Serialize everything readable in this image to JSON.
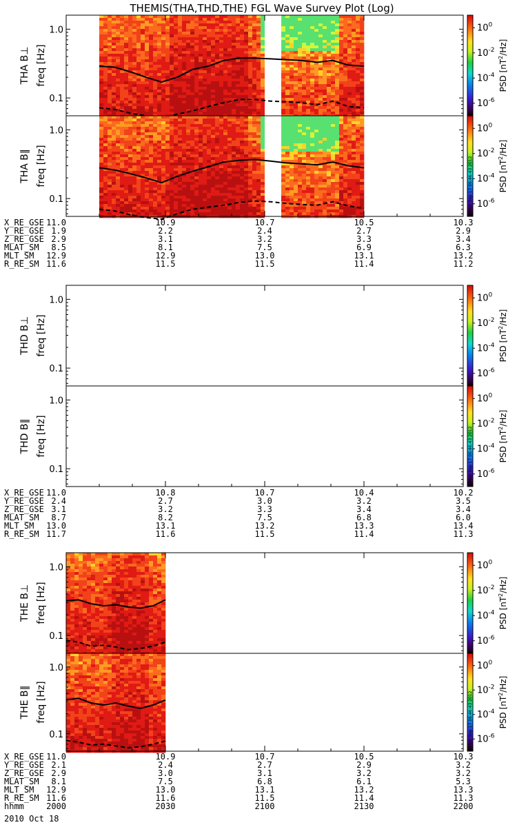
{
  "chart_data": {
    "type": "heatmap",
    "title": "THEMIS(THA,THD,THE) FGL Wave Survey Plot (Log)",
    "y_axis": {
      "label": "freq [Hz]",
      "scale": "log",
      "range": [
        0.055,
        1.6
      ],
      "ticks": [
        0.1,
        1.0
      ],
      "tick_labels": [
        "0.1",
        "1.0"
      ]
    },
    "colorbar": {
      "label": "PSD [nT2/Hz]",
      "scale": "log",
      "ticks": [
        "10^0",
        "10^-2",
        "10^-4",
        "10^-6"
      ],
      "range_exponents": [
        -7,
        1
      ],
      "stamp": "Mon Sep 17 06:46:43 2012"
    },
    "time_axis": {
      "label": "hhmm",
      "date": "2010 Oct 18",
      "ticks": [
        "2000",
        "2030",
        "2100",
        "2130",
        "2200"
      ],
      "range": [
        "2000",
        "2200"
      ]
    },
    "probes": [
      {
        "id": "THA",
        "panels": [
          {
            "label": "THA B⊥",
            "data_range": [
              "2010",
              "2130"
            ],
            "data_gap": [
              "2100",
              "2105"
            ],
            "upper_line_hz": [
              0.29,
              0.28,
              0.24,
              0.2,
              0.17,
              0.2,
              0.26,
              0.29,
              0.35,
              0.38,
              0.38,
              0.37,
              0.36,
              0.35,
              0.33,
              0.35,
              0.3,
              0.29
            ],
            "lower_line_hz": [
              0.072,
              0.068,
              0.06,
              0.055,
              0.05,
              0.058,
              0.065,
              0.075,
              0.085,
              0.095,
              0.095,
              0.09,
              0.088,
              0.085,
              0.08,
              0.09,
              0.075,
              0.072
            ]
          },
          {
            "label": "THA B∥",
            "data_range": [
              "2010",
              "2130"
            ],
            "data_gap": [
              "2100",
              "2105"
            ],
            "upper_line_hz": [
              0.28,
              0.26,
              0.23,
              0.2,
              0.17,
              0.21,
              0.25,
              0.29,
              0.34,
              0.36,
              0.37,
              0.35,
              0.33,
              0.32,
              0.31,
              0.34,
              0.3,
              0.28
            ],
            "lower_line_hz": [
              0.07,
              0.066,
              0.058,
              0.053,
              0.05,
              0.06,
              0.07,
              0.075,
              0.08,
              0.088,
              0.092,
              0.09,
              0.085,
              0.082,
              0.08,
              0.09,
              0.078,
              0.072
            ]
          }
        ],
        "ephemeris": {
          "row_labels": [
            "X_RE_GSE",
            "Y_RE_GSE",
            "Z_RE_GSE",
            "MLAT_SM",
            "MLT_SM",
            "R_RE_SM"
          ],
          "columns": [
            [
              "11.0",
              "1.9",
              "2.9",
              "8.5",
              "12.9",
              "11.6"
            ],
            [
              "10.9",
              "2.2",
              "3.1",
              "8.1",
              "12.9",
              "11.5"
            ],
            [
              "10.7",
              "2.4",
              "3.2",
              "7.5",
              "13.0",
              "11.5"
            ],
            [
              "10.5",
              "2.7",
              "3.3",
              "6.9",
              "13.1",
              "11.4"
            ],
            [
              "10.3",
              "2.9",
              "3.4",
              "6.3",
              "13.2",
              "11.2"
            ]
          ]
        }
      },
      {
        "id": "THD",
        "panels": [
          {
            "label": "THD B⊥",
            "data_range": null
          },
          {
            "label": "THD B∥",
            "data_range": null
          }
        ],
        "ephemeris": {
          "row_labels": [
            "X_RE_GSE",
            "Y_RE_GSE",
            "Z_RE_GSE",
            "MLAT_SM",
            "MLT_SM",
            "R_RE_SM"
          ],
          "columns": [
            [
              "11.0",
              "2.4",
              "3.1",
              "8.7",
              "13.0",
              "11.7"
            ],
            [
              "10.8",
              "2.7",
              "3.2",
              "8.2",
              "13.1",
              "11.6"
            ],
            [
              "10.7",
              "3.0",
              "3.3",
              "7.5",
              "13.2",
              "11.5"
            ],
            [
              "10.4",
              "3.2",
              "3.4",
              "6.8",
              "13.3",
              "11.4"
            ],
            [
              "10.2",
              "3.5",
              "3.4",
              "6.0",
              "13.4",
              "11.3"
            ]
          ]
        }
      },
      {
        "id": "THE",
        "panels": [
          {
            "label": "THE B⊥",
            "data_range": [
              "2000",
              "2030"
            ],
            "upper_line_hz": [
              0.32,
              0.33,
              0.29,
              0.27,
              0.28,
              0.26,
              0.25,
              0.27,
              0.33
            ],
            "lower_line_hz": [
              0.085,
              0.08,
              0.07,
              0.072,
              0.068,
              0.062,
              0.065,
              0.07,
              0.08
            ]
          },
          {
            "label": "THE B∥",
            "data_range": [
              "2000",
              "2030"
            ],
            "upper_line_hz": [
              0.32,
              0.34,
              0.29,
              0.27,
              0.29,
              0.26,
              0.24,
              0.27,
              0.32
            ],
            "lower_line_hz": [
              0.08,
              0.075,
              0.068,
              0.07,
              0.066,
              0.062,
              0.064,
              0.07,
              0.078
            ]
          }
        ],
        "ephemeris": {
          "row_labels": [
            "X_RE_GSE",
            "Y_RE_GSE",
            "Z_RE_GSE",
            "MLAT_SM",
            "MLT_SM",
            "R_RE_SM"
          ],
          "columns": [
            [
              "11.0",
              "2.1",
              "2.9",
              "8.1",
              "12.9",
              "11.6"
            ],
            [
              "10.9",
              "2.4",
              "3.0",
              "7.5",
              "13.0",
              "11.6"
            ],
            [
              "10.7",
              "2.7",
              "3.1",
              "6.8",
              "13.1",
              "11.5"
            ],
            [
              "10.5",
              "2.9",
              "3.2",
              "6.1",
              "13.2",
              "11.4"
            ],
            [
              "10.3",
              "3.2",
              "3.2",
              "5.3",
              "13.3",
              "11.3"
            ]
          ]
        }
      }
    ]
  }
}
